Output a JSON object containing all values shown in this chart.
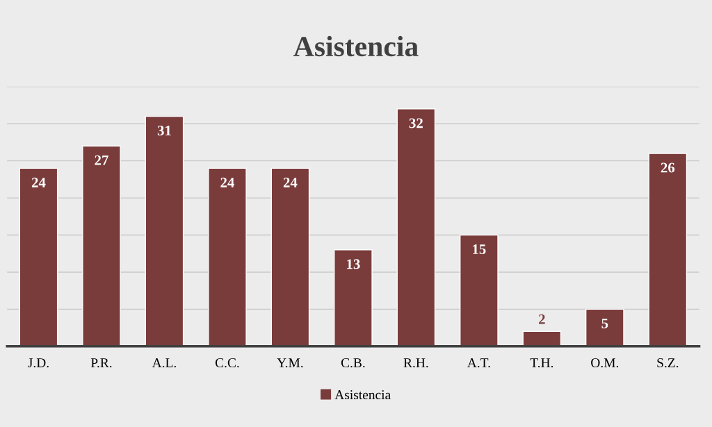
{
  "chart_data": {
    "type": "bar",
    "title": "Asistencia",
    "categories": [
      "J.D.",
      "P.R.",
      "A.L.",
      "C.C.",
      "Y.M.",
      "C.B.",
      "R.H.",
      "A.T.",
      "T.H.",
      "O.M.",
      "S.Z."
    ],
    "series": [
      {
        "name": "Asistencia",
        "color": "#7a3b3b",
        "values": [
          24,
          27,
          31,
          24,
          24,
          13,
          32,
          15,
          2,
          5,
          26
        ]
      }
    ],
    "ylim": [
      0,
      35
    ],
    "yticks": [
      {
        "value": 0,
        "label": null
      },
      {
        "value": 5,
        "label": null
      },
      {
        "value": 10,
        "label": null
      },
      {
        "value": 15,
        "label": null
      },
      {
        "value": 20,
        "label": null
      },
      {
        "value": 25,
        "label": null
      },
      {
        "value": 30,
        "label": null
      },
      {
        "value": 35,
        "label": null
      }
    ],
    "tick_labels": "x",
    "grid": "y",
    "legend": "bottom",
    "data_labels": true
  }
}
